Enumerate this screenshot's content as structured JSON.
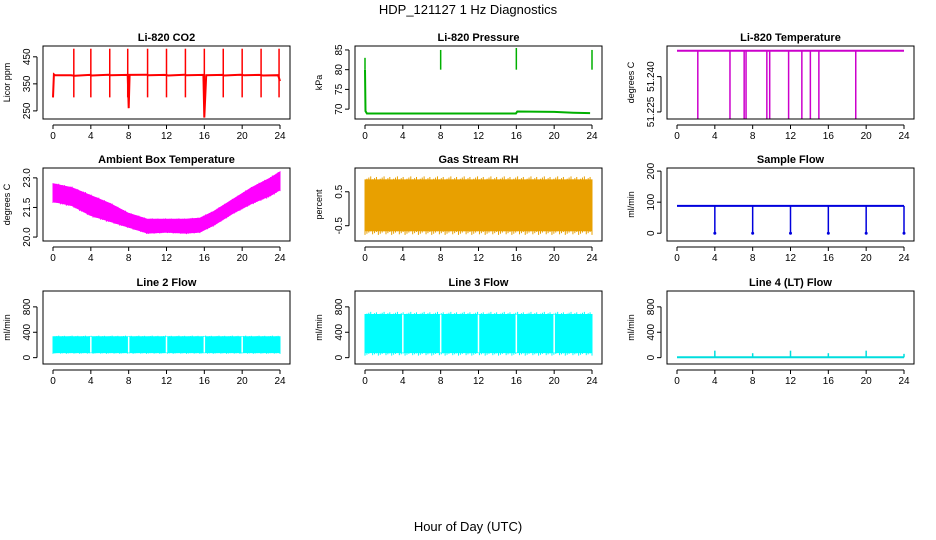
{
  "figure": {
    "title": "HDP_121127  1 Hz Diagnostics",
    "xlabel": "Hour of Day (UTC)"
  },
  "chart_data": [
    {
      "type": "line",
      "title": "Li-820 CO2",
      "ylabel": "Licor ppm",
      "xticks": [
        "0",
        "4",
        "8",
        "12",
        "16",
        "20",
        "24"
      ],
      "yticks": [
        "250",
        "350",
        "450"
      ],
      "xlim": [
        0,
        24
      ],
      "ylim": [
        220,
        490
      ],
      "color": "#ff0000",
      "series": [
        {
          "x": [
            0,
            0.1,
            0.2,
            1.9,
            2.3,
            3.9,
            4.1,
            5.9,
            6.0,
            7.9,
            8.0,
            8.1,
            9.9,
            10.1,
            11.8,
            12.2,
            13.9,
            14.1,
            15.9,
            16.0,
            16.2,
            17.9,
            18.1,
            19.8,
            20.2,
            21.8,
            22.2,
            23.8,
            24.0
          ],
          "y": [
            300,
            385,
            382,
            382,
            380,
            383,
            381,
            384,
            382,
            383,
            260,
            383,
            384,
            382,
            383,
            381,
            384,
            382,
            383,
            225,
            382,
            383,
            381,
            384,
            382,
            383,
            381,
            382,
            360
          ]
        }
      ],
      "spikes": {
        "x": [
          2.2,
          4.0,
          6.0,
          7.9,
          10.0,
          12.0,
          14.0,
          16.0,
          18.0,
          20.0,
          22.0,
          23.9
        ],
        "y": [
          480,
          480,
          480,
          480,
          480,
          480,
          480,
          480,
          480,
          480,
          480,
          480
        ]
      }
    },
    {
      "type": "line",
      "title": "Li-820 Pressure",
      "ylabel": "kPa",
      "xticks": [
        "0",
        "4",
        "8",
        "12",
        "16",
        "20",
        "24"
      ],
      "yticks": [
        "70",
        "75",
        "80",
        "85"
      ],
      "xlim": [
        0,
        24
      ],
      "ylim": [
        67.5,
        86
      ],
      "color": "#00b000",
      "series": [
        {
          "x": [
            0,
            0.05,
            0.2,
            4,
            8,
            12,
            15.95,
            16.1,
            20,
            22,
            23.8
          ],
          "y": [
            80,
            69.5,
            68.9,
            68.9,
            68.9,
            68.9,
            68.9,
            69.4,
            69.3,
            69.1,
            69.0
          ]
        }
      ],
      "spikes": {
        "x": [
          0.0,
          8.0,
          16.0,
          24.0
        ],
        "y": [
          83,
          85,
          85.5,
          85
        ]
      }
    },
    {
      "type": "line",
      "title": "Li-820 Temperature",
      "ylabel": "degrees C",
      "xticks": [
        "0",
        "4",
        "8",
        "12",
        "16",
        "20",
        "24"
      ],
      "yticks": [
        "51.225",
        "51.240"
      ],
      "xlim": [
        0,
        24
      ],
      "ylim": [
        51.222,
        51.253
      ],
      "color": "#cc00cc",
      "series": [
        {
          "x": [
            0,
            24
          ],
          "y": [
            51.251,
            51.251
          ]
        }
      ],
      "spikes": {
        "x": [
          2.2,
          5.6,
          7.1,
          7.3,
          9.5,
          9.8,
          11.8,
          13.2,
          14.1,
          15.0,
          18.9
        ],
        "y": [
          51.222,
          51.222,
          51.222,
          51.222,
          51.222,
          51.222,
          51.222,
          51.222,
          51.222,
          51.222,
          51.222
        ]
      }
    },
    {
      "type": "area",
      "title": "Ambient Box Temperature",
      "ylabel": "degrees C",
      "xticks": [
        "0",
        "4",
        "8",
        "12",
        "16",
        "20",
        "24"
      ],
      "yticks": [
        "20.0",
        "21.5",
        "23.0"
      ],
      "xlim": [
        0,
        24
      ],
      "ylim": [
        19.8,
        23.5
      ],
      "color": "#ff00ff",
      "series": [
        {
          "name": "upper",
          "x": [
            0,
            2,
            4,
            6,
            8,
            10,
            12,
            14,
            15.5,
            17,
            19,
            21,
            23,
            24
          ],
          "y": [
            22.7,
            22.5,
            22.1,
            21.7,
            21.2,
            20.9,
            20.9,
            20.9,
            20.95,
            21.3,
            21.9,
            22.5,
            23.0,
            23.3
          ]
        },
        {
          "name": "lower",
          "x": [
            0,
            2,
            4,
            6,
            8,
            10,
            12,
            14,
            15.5,
            17,
            19,
            21,
            23,
            24
          ],
          "y": [
            21.8,
            21.6,
            21.1,
            20.8,
            20.5,
            20.2,
            20.25,
            20.2,
            20.25,
            20.6,
            21.2,
            21.7,
            22.1,
            22.4
          ]
        }
      ]
    },
    {
      "type": "area",
      "title": "Gas Stream RH",
      "ylabel": "percent",
      "xticks": [
        "0",
        "4",
        "8",
        "12",
        "16",
        "20",
        "24"
      ],
      "yticks": [
        "-0.5",
        "0.5"
      ],
      "xlim": [
        0,
        24
      ],
      "ylim": [
        -0.95,
        1.2
      ],
      "color": "#e8a000",
      "series": [
        {
          "name": "upper",
          "x": [
            0,
            24
          ],
          "y": [
            0.85,
            0.85
          ]
        },
        {
          "name": "lower",
          "x": [
            0,
            24
          ],
          "y": [
            -0.65,
            -0.65
          ]
        }
      ]
    },
    {
      "type": "line",
      "title": "Sample Flow",
      "ylabel": "ml/min",
      "xticks": [
        "0",
        "4",
        "8",
        "12",
        "16",
        "20",
        "24"
      ],
      "yticks": [
        "0",
        "100",
        "200"
      ],
      "xlim": [
        0,
        24
      ],
      "ylim": [
        -25,
        210
      ],
      "color": "#0000dd",
      "series": [
        {
          "x": [
            0,
            24
          ],
          "y": [
            88,
            88
          ]
        }
      ],
      "dips": {
        "x": [
          4.0,
          8.0,
          12.0,
          16.0,
          20.0,
          24.0
        ],
        "y": [
          0,
          0,
          0,
          0,
          0,
          0
        ]
      }
    },
    {
      "type": "area",
      "title": "Line 2 Flow",
      "ylabel": "ml/min",
      "xticks": [
        "0",
        "4",
        "8",
        "12",
        "16",
        "20",
        "24"
      ],
      "yticks": [
        "0",
        "400",
        "800"
      ],
      "xlim": [
        0,
        24
      ],
      "ylim": [
        -100,
        1050
      ],
      "color": "#00ffff",
      "series": [
        {
          "name": "upper",
          "x": [
            0,
            24
          ],
          "y": [
            330,
            330
          ]
        },
        {
          "name": "lower",
          "x": [
            0,
            24
          ],
          "y": [
            80,
            80
          ]
        }
      ],
      "gaps_x": [
        4,
        8,
        12,
        16,
        20
      ]
    },
    {
      "type": "area",
      "title": "Line 3 Flow",
      "ylabel": "ml/min",
      "xticks": [
        "0",
        "4",
        "8",
        "12",
        "16",
        "20",
        "24"
      ],
      "yticks": [
        "0",
        "400",
        "800"
      ],
      "xlim": [
        0,
        24
      ],
      "ylim": [
        -100,
        1050
      ],
      "color": "#00ffff",
      "series": [
        {
          "name": "upper",
          "x": [
            0,
            24
          ],
          "y": [
            680,
            680
          ]
        },
        {
          "name": "lower",
          "x": [
            0,
            24
          ],
          "y": [
            80,
            80
          ]
        }
      ],
      "gaps_x": [
        4,
        8,
        12,
        16,
        20
      ]
    },
    {
      "type": "line",
      "title": "Line 4 (LT) Flow",
      "ylabel": "ml/min",
      "xticks": [
        "0",
        "4",
        "8",
        "12",
        "16",
        "20",
        "24"
      ],
      "yticks": [
        "0",
        "400",
        "800"
      ],
      "xlim": [
        0,
        24
      ],
      "ylim": [
        -100,
        1050
      ],
      "color": "#00dddd",
      "series": [
        {
          "x": [
            0,
            24
          ],
          "y": [
            5,
            5
          ]
        }
      ],
      "spikes": {
        "x": [
          4.0,
          8.0,
          12.0,
          16.0,
          20.0,
          24.0
        ],
        "y": [
          110,
          70,
          110,
          70,
          110,
          60
        ]
      }
    }
  ]
}
